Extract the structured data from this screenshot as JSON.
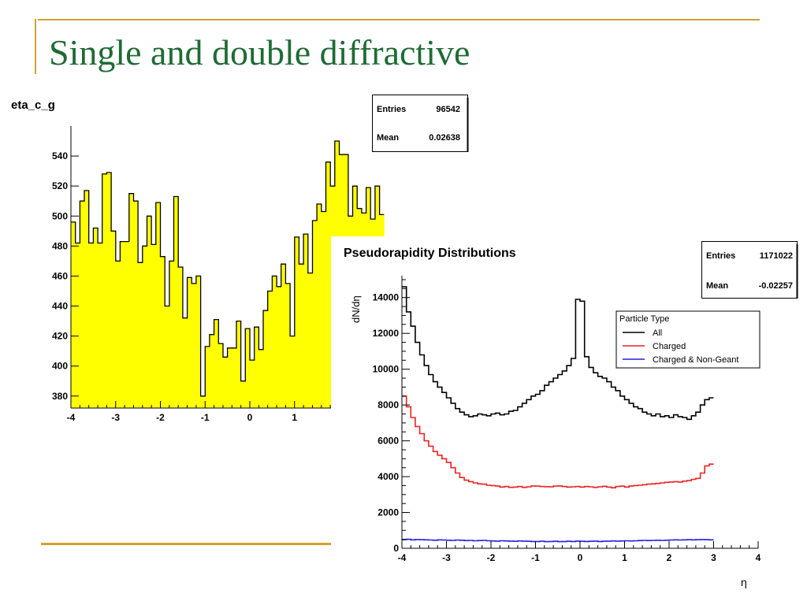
{
  "slide": {
    "title": "Single and double diffractive",
    "footer_symbol": "η",
    "accent_color": "#d4a12f",
    "title_color": "#1f6b35"
  },
  "chart_data": [
    {
      "type": "bar",
      "title": "eta_c_g",
      "xlabel": "",
      "ylabel": "",
      "xlim": [
        -4,
        4
      ],
      "ylim": [
        372,
        560
      ],
      "x_ticks": [
        -4,
        -3,
        -2,
        -1,
        0,
        1
      ],
      "y_ticks": [
        380,
        400,
        420,
        440,
        460,
        480,
        500,
        520,
        540
      ],
      "fill_color": "#ffff00",
      "stats": {
        "entries_label": "Entries",
        "entries": "96542",
        "mean_label": "Mean",
        "mean": "0.02638"
      },
      "bin_width": 0.1,
      "values": [
        496,
        482,
        510,
        517,
        482,
        492,
        482,
        528,
        529,
        490,
        470,
        483,
        483,
        515,
        510,
        469,
        480,
        500,
        481,
        509,
        473,
        440,
        470,
        513,
        466,
        432,
        459,
        455,
        460,
        380,
        413,
        421,
        431,
        415,
        406,
        412,
        412,
        430,
        390,
        425,
        404,
        426,
        411,
        437,
        450,
        460,
        453,
        468,
        455,
        420,
        486,
        468,
        488,
        462,
        497,
        508,
        503,
        536,
        520,
        550,
        541,
        541,
        500,
        520,
        505,
        502,
        519,
        498,
        520,
        501
      ]
    },
    {
      "type": "line",
      "title": "Pseudorapidity Distributions",
      "xlabel": "η",
      "ylabel": "dN/dη",
      "xlim": [
        -4,
        4
      ],
      "ylim": [
        0,
        15000
      ],
      "x_ticks": [
        -4,
        -3,
        -2,
        -1,
        0,
        1,
        2,
        3,
        4
      ],
      "y_ticks": [
        0,
        2000,
        4000,
        6000,
        8000,
        10000,
        12000,
        14000
      ],
      "stats": {
        "entries_label": "Entries",
        "entries": "1171022",
        "mean_label": "Mean",
        "mean": "-0.02257"
      },
      "legend": {
        "title": "Particle Type",
        "placement": "top-right"
      },
      "bin_width": 0.1,
      "series": [
        {
          "name": "All",
          "color": "#000000",
          "values": [
            14600,
            13200,
            12400,
            11500,
            10800,
            10200,
            9700,
            9300,
            9000,
            8700,
            8400,
            8100,
            7800,
            7600,
            7450,
            7350,
            7400,
            7500,
            7450,
            7400,
            7500,
            7550,
            7450,
            7500,
            7650,
            7700,
            7900,
            8100,
            8300,
            8500,
            8600,
            8800,
            9100,
            9300,
            9500,
            9700,
            9900,
            10200,
            10600,
            13900,
            13800,
            10700,
            10100,
            9800,
            9600,
            9500,
            9300,
            9000,
            8800,
            8500,
            8300,
            8100,
            7900,
            7800,
            7600,
            7500,
            7400,
            7500,
            7350,
            7400,
            7300,
            7450,
            7350,
            7300,
            7200,
            7400,
            7600,
            8000,
            8300,
            8400
          ]
        },
        {
          "name": "Charged",
          "color": "#ee2222",
          "values": [
            8500,
            7900,
            7300,
            6800,
            6400,
            6000,
            5700,
            5400,
            5200,
            5000,
            4800,
            4500,
            4200,
            3950,
            3800,
            3720,
            3650,
            3600,
            3580,
            3520,
            3500,
            3480,
            3420,
            3450,
            3400,
            3420,
            3450,
            3400,
            3430,
            3480,
            3470,
            3450,
            3440,
            3430,
            3470,
            3480,
            3450,
            3420,
            3430,
            3450,
            3420,
            3450,
            3430,
            3400,
            3430,
            3460,
            3420,
            3380,
            3450,
            3470,
            3420,
            3480,
            3500,
            3520,
            3550,
            3580,
            3600,
            3620,
            3650,
            3680,
            3700,
            3720,
            3700,
            3750,
            3780,
            3850,
            3900,
            4200,
            4600,
            4700
          ]
        },
        {
          "name": "Charged & Non-Geant",
          "color": "#2222dd",
          "values": [
            480,
            500,
            470,
            490,
            480,
            470,
            460,
            450,
            470,
            460,
            450,
            440,
            460,
            450,
            430,
            440,
            420,
            430,
            440,
            420,
            410,
            400,
            420,
            410,
            400,
            390,
            410,
            400,
            390,
            380,
            380,
            390,
            370,
            380,
            390,
            370,
            380,
            390,
            380,
            400,
            390,
            380,
            390,
            400,
            380,
            390,
            400,
            410,
            400,
            410,
            420,
            410,
            420,
            430,
            440,
            430,
            440,
            450,
            440,
            450,
            460,
            470,
            460,
            470,
            480,
            470,
            480,
            490,
            480,
            470
          ]
        }
      ]
    }
  ]
}
